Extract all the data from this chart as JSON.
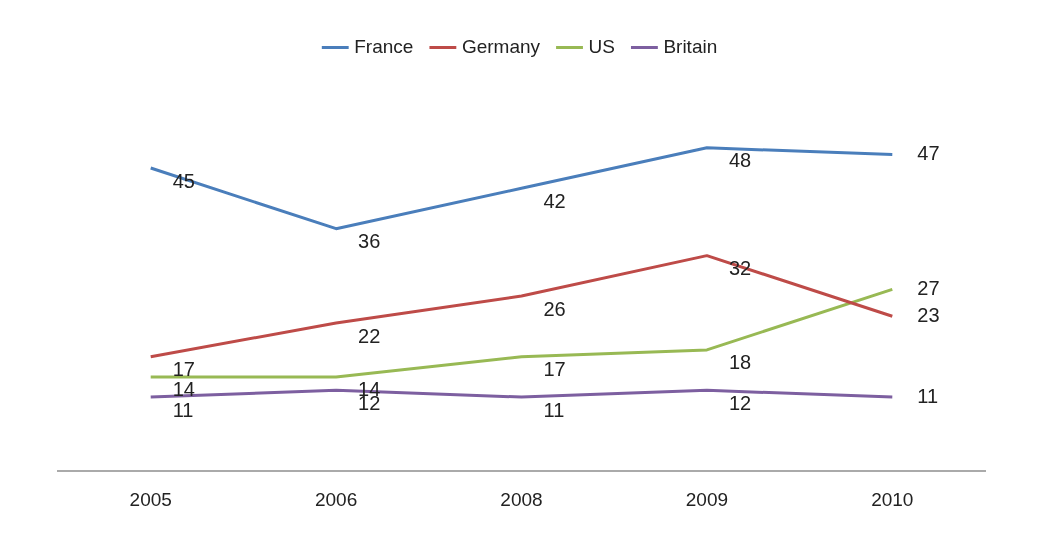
{
  "chart_data": {
    "type": "line",
    "categories": [
      "2005",
      "2006",
      "2008",
      "2009",
      "2010"
    ],
    "series": [
      {
        "name": "France",
        "color": "#4a7ebb",
        "values": [
          45,
          36,
          42,
          48,
          47
        ]
      },
      {
        "name": "Germany",
        "color": "#be4b48",
        "values": [
          17,
          22,
          26,
          32,
          23
        ]
      },
      {
        "name": "US",
        "color": "#98b954",
        "values": [
          14,
          14,
          17,
          18,
          27
        ]
      },
      {
        "name": "Britain",
        "color": "#7d5fa0",
        "values": [
          11,
          12,
          11,
          12,
          11
        ]
      }
    ],
    "data_labels": true,
    "legend": "top",
    "marker": "none",
    "line_style": "solid",
    "grid": false,
    "tick_labels": "x"
  }
}
